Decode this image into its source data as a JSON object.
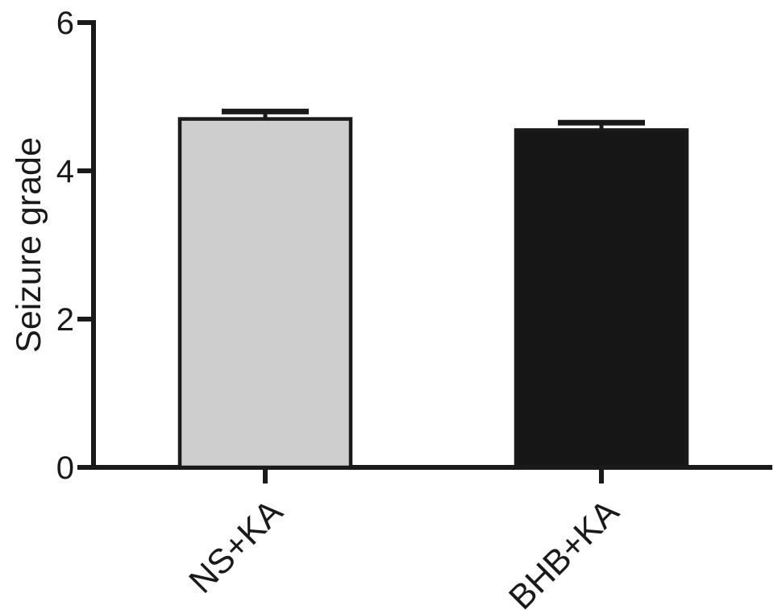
{
  "chart_data": {
    "type": "bar",
    "title": "",
    "categories": [
      "NS+KA",
      "BHB+KA"
    ],
    "values": [
      4.7,
      4.55
    ],
    "errors": [
      0.1,
      0.1
    ],
    "error_type": "upper-only",
    "ylabel": "Seizure grade",
    "xlabel": "",
    "ylim": [
      0,
      6
    ],
    "yticks": [
      0,
      2,
      4,
      6
    ],
    "grid": false,
    "legend": null,
    "bar_colors": [
      "#cecece",
      "#161616"
    ],
    "bar_border_color": "#1a1a1a",
    "axis_color": "#1a1a1a",
    "background": "#ffffff"
  }
}
